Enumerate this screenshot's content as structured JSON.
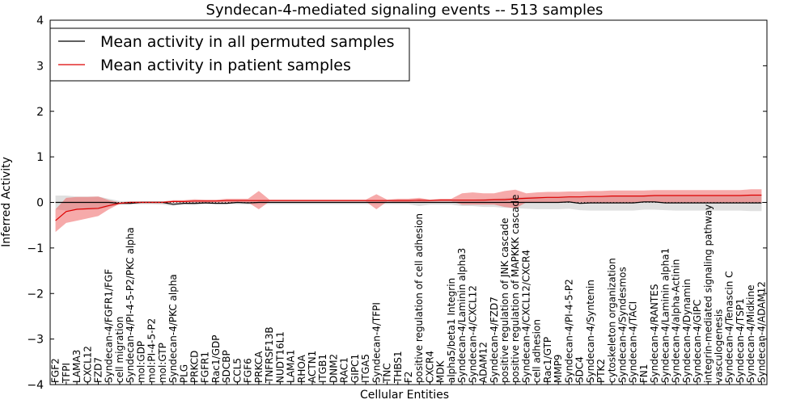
{
  "chart_data": {
    "type": "line",
    "title": "Syndecan-4-mediated signaling events -- 513 samples",
    "xlabel": "Cellular Entities",
    "ylabel": "Inferred Activity",
    "ylim": [
      -4,
      4
    ],
    "yticks": [
      "−4",
      "−3",
      "−2",
      "−1",
      "0",
      "1",
      "2",
      "3",
      "4"
    ],
    "ytick_values": [
      -4,
      -3,
      -2,
      -1,
      0,
      1,
      2,
      3,
      4
    ],
    "legend_position": "upper-left",
    "colors": {
      "permuted_line": "#000000",
      "permuted_band": "#bbbbbb",
      "patient_line": "#dd0000",
      "patient_band": "#ee5555"
    },
    "categories": [
      "FGF2",
      "TFPI",
      "LAMA3",
      "CXCL12",
      "FZD7",
      "Syndecan-4/FGFR1/FGF",
      "cell migration",
      "Syndecan-4/PI-4-5-P2/PKC alpha",
      "mol:GDP",
      "mol:PI-4-5-P2",
      "mol:GTP",
      "Syndecan-4/PKC alpha",
      "PLG",
      "PRKCD",
      "FGFR1",
      "Rac1/GDP",
      "SDCBP",
      "CCL5",
      "FGF6",
      "PRKCA",
      "TNFRSF13B",
      "NUDT16L1",
      "LAMA1",
      "RHOA",
      "ACTN1",
      "ITGB1",
      "DNM2",
      "RAC1",
      "GIPC1",
      "ITGA5",
      "Syndecan-4/TFPI",
      "TNC",
      "THBS1",
      "F2",
      "positive regulation of cell adhesion",
      "CXCR4",
      "MDK",
      "alpha5/beta1 Integrin",
      "Syndecan-4/Laminin alpha3",
      "Syndecan-4/CXCL12",
      "ADAM12",
      "Syndecan-4/FZD7",
      "positive regulation of JNK cascade",
      "positive regulation of MAPKKK cascade",
      "Syndecan-4/CXCL12/CXCR4",
      "cell adhesion",
      "Rac1/GTP",
      "MMP9",
      "Syndecan-4/PI-4-5-P2",
      "SDC4",
      "Syndecan-4/Syntenin",
      "PTK2",
      "cytoskeleton organization",
      "Syndecan-4/Syndesmos",
      "Syndecan-4/TACI",
      "FN1",
      "Syndecan-4/RANTES",
      "Syndecan-4/Laminin alpha1",
      "Syndecan-4/alpha-Actinin",
      "Syndecan-4/Dynamin",
      "Syndecan-4/GIPC",
      "integrin-mediated signaling pathway",
      "vasculogenesis",
      "Syndecan-4/Tenascin C",
      "Syndecan-4/TSP1",
      "Syndecan-4/Midkine",
      "Syndecan-4/ADAM12"
    ],
    "series": [
      {
        "name": "Mean activity in all permuted samples",
        "values": [
          0.0,
          0.0,
          0.0,
          0.0,
          0.0,
          0.0,
          -0.02,
          -0.02,
          0.0,
          0.0,
          0.0,
          -0.04,
          -0.02,
          -0.02,
          -0.01,
          -0.02,
          -0.02,
          0.0,
          -0.01,
          0.0,
          0.0,
          0.0,
          0.0,
          0.0,
          0.0,
          0.0,
          0.0,
          0.0,
          0.0,
          0.0,
          0.0,
          0.0,
          0.0,
          0.0,
          0.0,
          0.0,
          0.0,
          0.0,
          0.0,
          0.0,
          0.0,
          0.0,
          0.0,
          0.0,
          0.0,
          0.0,
          0.0,
          0.0,
          0.01,
          -0.02,
          -0.01,
          -0.01,
          -0.01,
          -0.01,
          -0.01,
          0.01,
          0.01,
          -0.01,
          -0.01,
          -0.01,
          -0.01,
          -0.01,
          -0.01,
          -0.01,
          -0.01,
          -0.01,
          -0.01
        ],
        "lower": [
          -0.15,
          -0.18,
          -0.16,
          -0.16,
          -0.16,
          -0.1,
          -0.05,
          -0.05,
          -0.04,
          -0.04,
          -0.05,
          -0.08,
          -0.05,
          -0.06,
          -0.04,
          -0.04,
          -0.04,
          -0.04,
          -0.05,
          -0.04,
          -0.04,
          -0.04,
          -0.04,
          -0.04,
          -0.04,
          -0.04,
          -0.04,
          -0.04,
          -0.04,
          -0.04,
          -0.04,
          -0.04,
          -0.04,
          -0.04,
          -0.08,
          -0.05,
          -0.05,
          -0.05,
          -0.08,
          -0.08,
          -0.1,
          -0.1,
          -0.12,
          -0.13,
          -0.14,
          -0.15,
          -0.15,
          -0.15,
          -0.14,
          -0.17,
          -0.18,
          -0.18,
          -0.18,
          -0.18,
          -0.18,
          -0.16,
          -0.16,
          -0.17,
          -0.18,
          -0.18,
          -0.18,
          -0.18,
          -0.18,
          -0.18,
          -0.18,
          -0.19,
          -0.19
        ],
        "upper": [
          0.15,
          0.15,
          0.13,
          0.13,
          0.13,
          0.08,
          0.03,
          0.03,
          0.03,
          0.03,
          0.03,
          0.01,
          0.03,
          0.03,
          0.03,
          0.03,
          0.03,
          0.03,
          0.03,
          0.04,
          0.04,
          0.04,
          0.04,
          0.04,
          0.04,
          0.04,
          0.04,
          0.04,
          0.04,
          0.04,
          0.04,
          0.04,
          0.04,
          0.04,
          0.06,
          0.05,
          0.05,
          0.05,
          0.06,
          0.06,
          0.08,
          0.08,
          0.1,
          0.11,
          0.12,
          0.13,
          0.13,
          0.13,
          0.14,
          0.13,
          0.14,
          0.14,
          0.14,
          0.14,
          0.14,
          0.16,
          0.16,
          0.15,
          0.15,
          0.15,
          0.15,
          0.15,
          0.15,
          0.15,
          0.15,
          0.15,
          0.15
        ]
      },
      {
        "name": "Mean activity in patient samples",
        "values": [
          -0.4,
          -0.2,
          -0.15,
          -0.14,
          -0.13,
          -0.07,
          -0.02,
          0.0,
          0.0,
          0.0,
          0.0,
          0.02,
          0.02,
          0.03,
          0.03,
          0.03,
          0.04,
          0.04,
          0.04,
          0.04,
          0.04,
          0.04,
          0.04,
          0.04,
          0.04,
          0.04,
          0.04,
          0.04,
          0.04,
          0.04,
          0.04,
          0.04,
          0.04,
          0.04,
          0.05,
          0.04,
          0.05,
          0.05,
          0.05,
          0.05,
          0.05,
          0.06,
          0.06,
          0.08,
          0.09,
          0.1,
          0.11,
          0.11,
          0.12,
          0.12,
          0.13,
          0.13,
          0.14,
          0.14,
          0.14,
          0.14,
          0.15,
          0.15,
          0.15,
          0.15,
          0.15,
          0.15,
          0.15,
          0.15,
          0.15,
          0.16,
          0.16
        ],
        "lower": [
          -0.65,
          -0.45,
          -0.4,
          -0.35,
          -0.3,
          -0.15,
          -0.03,
          -0.01,
          -0.01,
          -0.01,
          -0.01,
          0.0,
          0.0,
          0.0,
          0.0,
          0.0,
          0.0,
          0.0,
          0.0,
          -0.15,
          0.02,
          0.02,
          0.02,
          0.02,
          0.02,
          0.02,
          0.02,
          0.02,
          0.02,
          0.02,
          -0.15,
          0.02,
          0.0,
          0.0,
          0.0,
          0.02,
          0.02,
          0.02,
          -0.05,
          -0.05,
          -0.05,
          -0.05,
          -0.1,
          -0.13,
          0.0,
          0.0,
          0.0,
          0.0,
          0.0,
          0.0,
          0.0,
          0.0,
          0.0,
          0.0,
          0.0,
          0.0,
          0.0,
          0.0,
          0.0,
          0.0,
          0.0,
          0.0,
          0.0,
          0.0,
          0.0,
          0.0,
          0.0
        ],
        "upper": [
          -0.15,
          0.1,
          0.12,
          0.12,
          0.13,
          0.05,
          0.0,
          0.02,
          0.02,
          0.02,
          0.02,
          0.05,
          0.05,
          0.07,
          0.06,
          0.06,
          0.08,
          0.08,
          0.08,
          0.25,
          0.06,
          0.06,
          0.06,
          0.06,
          0.06,
          0.06,
          0.06,
          0.06,
          0.06,
          0.06,
          0.18,
          0.06,
          0.08,
          0.08,
          0.1,
          0.06,
          0.08,
          0.08,
          0.2,
          0.22,
          0.2,
          0.2,
          0.25,
          0.28,
          0.2,
          0.22,
          0.23,
          0.23,
          0.24,
          0.24,
          0.25,
          0.25,
          0.26,
          0.26,
          0.26,
          0.26,
          0.27,
          0.27,
          0.27,
          0.27,
          0.27,
          0.27,
          0.27,
          0.27,
          0.27,
          0.29,
          0.29
        ]
      }
    ]
  }
}
